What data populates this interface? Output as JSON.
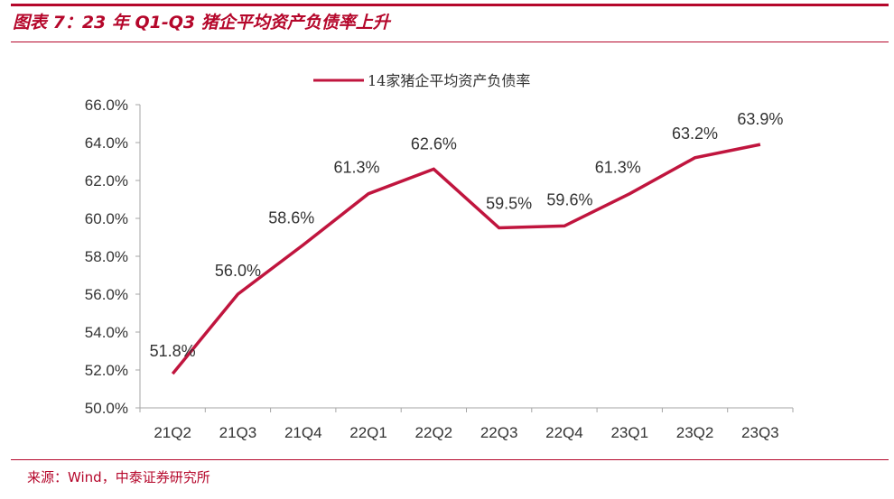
{
  "header": {
    "title": "图表 7：23 年 Q1-Q3 猪企平均资产负债率上升"
  },
  "footer": {
    "source": "来源：Wind，中泰证券研究所"
  },
  "colors": {
    "accent": "#b5072b",
    "series": "#c0153e",
    "text": "#333333",
    "axis": "#a6a6a6"
  },
  "chart_data": {
    "type": "line",
    "categories": [
      "21Q2",
      "21Q3",
      "21Q4",
      "22Q1",
      "22Q2",
      "22Q3",
      "22Q4",
      "23Q1",
      "23Q2",
      "23Q3"
    ],
    "series": [
      {
        "name": "14家猪企平均资产负债率",
        "values": [
          51.8,
          56.0,
          58.6,
          61.3,
          62.6,
          59.5,
          59.6,
          61.3,
          63.2,
          63.9
        ],
        "labels": [
          "51.8%",
          "56.0%",
          "58.6%",
          "61.3%",
          "62.6%",
          "59.5%",
          "59.6%",
          "61.3%",
          "63.2%",
          "63.9%"
        ]
      }
    ],
    "ylim": [
      50,
      66
    ],
    "yticks": [
      "50.0%",
      "52.0%",
      "54.0%",
      "56.0%",
      "58.0%",
      "60.0%",
      "62.0%",
      "64.0%",
      "66.0%"
    ],
    "xlabel": "",
    "ylabel": "",
    "grid": false,
    "legend": "top-center"
  }
}
